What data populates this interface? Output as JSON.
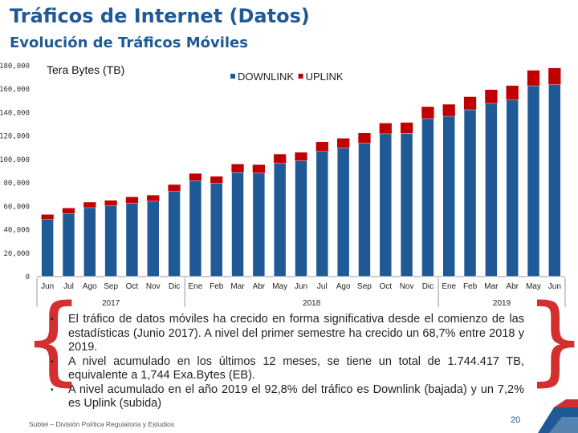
{
  "header": {
    "title": "Tráficos de Internet (Datos)",
    "subtitle": "Evolución de Tráficos Móviles"
  },
  "chart_data": {
    "type": "bar",
    "stacked": true,
    "title": "Tera Bytes (TB)",
    "ylim": [
      0,
      180000
    ],
    "yticks": [
      "0",
      "20,000",
      "40,000",
      "60,000",
      "80,000",
      "100,000",
      "120,000",
      "140,000",
      "160,000",
      "180,000"
    ],
    "categories": [
      "Jun",
      "Jul",
      "Ago",
      "Sep",
      "Oct",
      "Nov",
      "Dic",
      "Ene",
      "Feb",
      "Mar",
      "Abr",
      "May",
      "Jun",
      "Jul",
      "Ago",
      "Sep",
      "Oct",
      "Nov",
      "Dic",
      "Ene",
      "Feb",
      "Mar",
      "Abr",
      "May",
      "Jun"
    ],
    "year_groups": [
      {
        "label": "2017",
        "start": 0,
        "end": 6
      },
      {
        "label": "2018",
        "start": 7,
        "end": 18
      },
      {
        "label": "2019",
        "start": 19,
        "end": 24
      }
    ],
    "legend": [
      "DOWNLINK",
      "UPLINK"
    ],
    "series": [
      {
        "name": "DOWNLINK",
        "color": "#1f5a96",
        "values": [
          49000,
          54000,
          59000,
          60500,
          63000,
          64500,
          73000,
          82000,
          80000,
          89000,
          88500,
          97000,
          99000,
          107000,
          110000,
          114000,
          122000,
          122500,
          135000,
          137000,
          142500,
          148000,
          151000,
          163000,
          164000
        ]
      },
      {
        "name": "UPLINK",
        "color": "#c00000",
        "values": [
          4000,
          4500,
          4500,
          4500,
          5000,
          5000,
          5500,
          6000,
          5500,
          7000,
          7000,
          7500,
          7000,
          8000,
          8000,
          8500,
          9000,
          9000,
          10000,
          10000,
          11000,
          11500,
          12000,
          13000,
          14000
        ]
      }
    ]
  },
  "notes": [
    "El tráfico de datos móviles ha crecido en forma significativa desde el comienzo de las estadísticas (Junio 2017). A nivel del primer semestre ha crecido un 68,7% entre 2018 y 2019.",
    "A nivel acumulado en los últimos 12 meses, se tiene un total de 1.744.417 TB, equivalente a 1,744 Exa.Bytes (EB).",
    "A nivel acumulado en el año 2019 el 92,8% del tráfico es Downlink (bajada) y un 7,2% es Uplink (subida)"
  ],
  "bullet_symbol": "▪",
  "bracket_left": "{",
  "bracket_right": "}",
  "footer": "Subtel – División Política Regulatoria y Estudios",
  "page_number": "20",
  "colors": {
    "brand_blue": "#1f5a96",
    "brand_red": "#d32f2f"
  }
}
